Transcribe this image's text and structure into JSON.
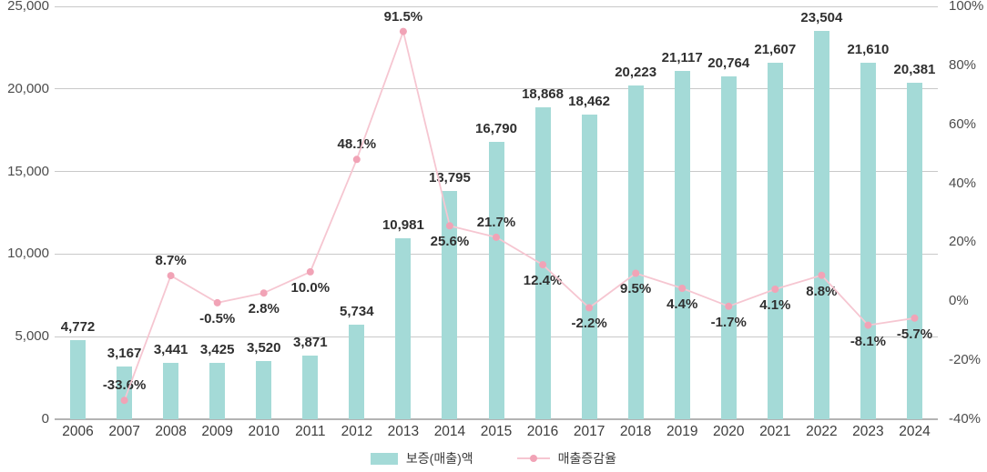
{
  "chart_data": {
    "type": "bar",
    "title": "",
    "xlabel": "",
    "ylabel": "",
    "categories": [
      "2006",
      "2007",
      "2008",
      "2009",
      "2010",
      "2011",
      "2012",
      "2013",
      "2014",
      "2015",
      "2016",
      "2017",
      "2018",
      "2019",
      "2020",
      "2021",
      "2022",
      "2023",
      "2024"
    ],
    "series": [
      {
        "name": "보증(매출)액",
        "chart_type": "bar",
        "axis": "left",
        "color": "#a4dad7",
        "values": [
          4772,
          3167,
          3441,
          3425,
          3520,
          3871,
          5734,
          10981,
          13795,
          16790,
          18868,
          18462,
          20223,
          21117,
          20764,
          21607,
          23504,
          21610,
          20381
        ],
        "data_labels": [
          "4,772",
          "3,167",
          "3,441",
          "3,425",
          "3,520",
          "3,871",
          "5,734",
          "10,981",
          "13,795",
          "16,790",
          "18,868",
          "18,462",
          "20,223",
          "21,117",
          "20,764",
          "21,607",
          "23,504",
          "21,610",
          "20,381"
        ]
      },
      {
        "name": "매출증감율",
        "chart_type": "line",
        "axis": "right",
        "line_color": "#f6c6d1",
        "dot_color": "#f1a3b6",
        "values": [
          null,
          -33.6,
          8.7,
          -0.5,
          2.8,
          10.0,
          48.1,
          91.5,
          25.6,
          21.7,
          12.4,
          -2.2,
          9.5,
          4.4,
          -1.7,
          4.1,
          8.8,
          -8.1,
          -5.7
        ],
        "data_labels": [
          "",
          "-33.6%",
          "8.7%",
          "-0.5%",
          "2.8%",
          "10.0%",
          "48.1%",
          "91.5%",
          "25.6%",
          "21.7%",
          "12.4%",
          "-2.2%",
          "9.5%",
          "4.4%",
          "-1.7%",
          "4.1%",
          "8.8%",
          "-8.1%",
          "-5.7%"
        ],
        "label_positions": [
          "",
          "above",
          "above",
          "below",
          "below",
          "below",
          "above",
          "above",
          "below",
          "above",
          "below",
          "below",
          "below",
          "below",
          "below",
          "below",
          "below",
          "below",
          "below"
        ]
      }
    ],
    "left_axis": {
      "min": 0,
      "max": 25000,
      "tick_step": 5000,
      "tick_labels": [
        "0",
        "5,000",
        "10,000",
        "15,000",
        "20,000",
        "25,000"
      ]
    },
    "right_axis": {
      "min": -40,
      "max": 100,
      "tick_step": 20,
      "tick_labels": [
        "-40%",
        "-20%",
        "0%",
        "20%",
        "40%",
        "60%",
        "80%",
        "100%"
      ]
    },
    "grid": true,
    "legend_position": "bottom",
    "colors": {
      "bar": "#a4dad7",
      "line": "#f6c6d1",
      "dot": "#f1a3b6",
      "gridline": "#c9c9c9",
      "axis_text": "#4c4c4c",
      "label_text": "#2f2f2f"
    }
  }
}
